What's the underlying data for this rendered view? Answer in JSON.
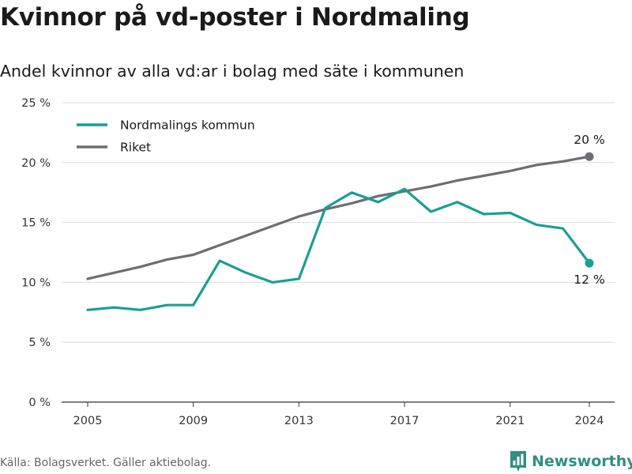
{
  "title": "Kvinnor på vd-poster i Nordmaling",
  "subtitle": "Andel kvinnor av alla vd:ar i bolag med säte i kommunen",
  "source": "Källa: Bolagsverket. Gäller aktiebolag.",
  "brand": "Newsworthy",
  "colors": {
    "nordmaling": "#1a9e96",
    "riket": "#6e6d72",
    "grid": "#dddddd",
    "brand": "#2f8f82"
  },
  "chart_data": {
    "type": "line",
    "title": "Kvinnor på vd-poster i Nordmaling",
    "subtitle": "Andel kvinnor av alla vd:ar i bolag med säte i kommunen",
    "xlabel": "",
    "ylabel": "",
    "x": [
      2005,
      2006,
      2007,
      2008,
      2009,
      2010,
      2011,
      2012,
      2013,
      2014,
      2015,
      2016,
      2017,
      2018,
      2019,
      2020,
      2021,
      2022,
      2023,
      2024
    ],
    "x_ticks": [
      2005,
      2009,
      2013,
      2017,
      2021,
      2024
    ],
    "x_tick_labels": [
      "2005",
      "2009",
      "2013",
      "2017",
      "2021",
      "2024"
    ],
    "xlim": [
      2005,
      2024
    ],
    "ylim": [
      0,
      25
    ],
    "y_ticks": [
      0,
      5,
      10,
      15,
      20,
      25
    ],
    "y_tick_labels": [
      "0 %",
      "5 %",
      "10 %",
      "15 %",
      "20 %",
      "25 %"
    ],
    "grid": true,
    "legend_position": "top-left",
    "series": [
      {
        "name": "Nordmalings kommun",
        "color": "#1a9e96",
        "values": [
          7.7,
          7.9,
          7.7,
          8.1,
          8.1,
          11.8,
          10.8,
          10.0,
          10.3,
          16.2,
          17.5,
          16.7,
          17.8,
          15.9,
          16.7,
          15.7,
          15.8,
          14.8,
          14.5,
          11.6
        ],
        "end_label": "12 %",
        "end_label_position": "below"
      },
      {
        "name": "Riket",
        "color": "#6e6d72",
        "values": [
          10.3,
          10.8,
          11.3,
          11.9,
          12.3,
          13.1,
          13.9,
          14.7,
          15.5,
          16.1,
          16.6,
          17.2,
          17.6,
          18.0,
          18.5,
          18.9,
          19.3,
          19.8,
          20.1,
          20.5
        ],
        "end_label": "20 %",
        "end_label_position": "above"
      }
    ]
  }
}
